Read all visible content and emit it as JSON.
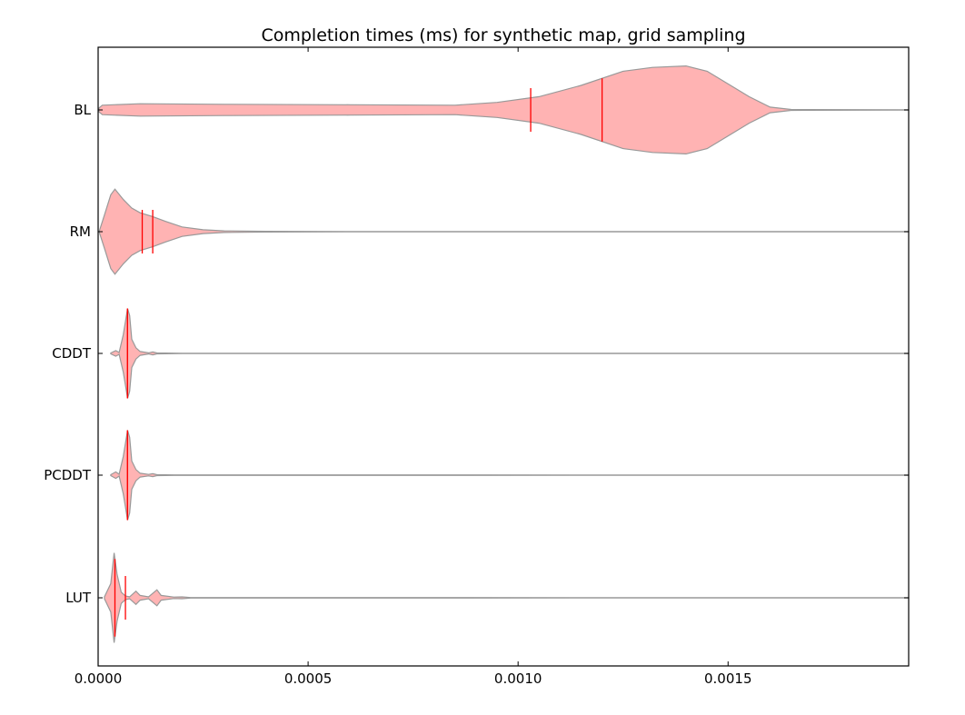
{
  "chart_data": {
    "type": "violin",
    "orientation": "horizontal",
    "title": "Completion times (ms) for synthetic map, grid sampling",
    "xlabel": "",
    "ylabel": "",
    "xlim": [
      0,
      0.00193
    ],
    "x_ticks": [
      0,
      0.0005,
      0.001,
      0.0015
    ],
    "x_tick_labels": [
      "0.0000",
      "0.0005",
      "0.0010",
      "0.0015"
    ],
    "grid": false,
    "colors": {
      "violin_fill": "#ffb3b3",
      "violin_edge": "#999999",
      "marker": "#ff0000",
      "axis": "#000000"
    },
    "categories": [
      "BL",
      "RM",
      "CDDT",
      "PCDDT",
      "LUT"
    ],
    "series": [
      {
        "label": "BL",
        "mean": 0.00103,
        "median": 0.0012,
        "range": [
          2e-06,
          0.00193
        ],
        "profile": [
          [
            2e-06,
            0.04
          ],
          [
            1e-05,
            0.1
          ],
          [
            0.0001,
            0.13
          ],
          [
            0.0003,
            0.12
          ],
          [
            0.0006,
            0.11
          ],
          [
            0.00085,
            0.1
          ],
          [
            0.00095,
            0.16
          ],
          [
            0.00105,
            0.28
          ],
          [
            0.00115,
            0.52
          ],
          [
            0.00125,
            0.82
          ],
          [
            0.00132,
            0.9
          ],
          [
            0.0014,
            0.93
          ],
          [
            0.00145,
            0.82
          ],
          [
            0.0015,
            0.55
          ],
          [
            0.00155,
            0.28
          ],
          [
            0.0016,
            0.06
          ],
          [
            0.00165,
            0.01
          ],
          [
            0.00193,
            0.003
          ]
        ]
      },
      {
        "label": "RM",
        "mean": 0.000105,
        "median": 0.00013,
        "range": [
          3e-06,
          0.00193
        ],
        "profile": [
          [
            3e-06,
            0.02
          ],
          [
            1.5e-05,
            0.35
          ],
          [
            3e-05,
            0.78
          ],
          [
            4e-05,
            0.9
          ],
          [
            6e-05,
            0.68
          ],
          [
            8e-05,
            0.5
          ],
          [
            0.0001,
            0.4
          ],
          [
            0.00013,
            0.32
          ],
          [
            0.00016,
            0.22
          ],
          [
            0.0002,
            0.1
          ],
          [
            0.00025,
            0.04
          ],
          [
            0.0003,
            0.018
          ],
          [
            0.0004,
            0.008
          ],
          [
            0.0006,
            0.004
          ],
          [
            0.00193,
            0.002
          ]
        ]
      },
      {
        "label": "CDDT",
        "mean": 7e-05,
        "median": 7e-05,
        "range": [
          3e-05,
          0.00193
        ],
        "profile": [
          [
            3e-05,
            0.01
          ],
          [
            4.2e-05,
            0.06
          ],
          [
            5e-05,
            0.02
          ],
          [
            6e-05,
            0.4
          ],
          [
            7e-05,
            0.95
          ],
          [
            7.5e-05,
            0.8
          ],
          [
            8e-05,
            0.3
          ],
          [
            9e-05,
            0.12
          ],
          [
            0.0001,
            0.04
          ],
          [
            0.00012,
            0.012
          ],
          [
            0.00013,
            0.03
          ],
          [
            0.00014,
            0.01
          ],
          [
            0.0002,
            0.004
          ],
          [
            0.00193,
            0.002
          ]
        ]
      },
      {
        "label": "PCDDT",
        "mean": 7e-05,
        "median": 7e-05,
        "range": [
          3e-05,
          0.00193
        ],
        "profile": [
          [
            3e-05,
            0.01
          ],
          [
            4.2e-05,
            0.07
          ],
          [
            5e-05,
            0.02
          ],
          [
            6e-05,
            0.4
          ],
          [
            7e-05,
            0.95
          ],
          [
            7.5e-05,
            0.8
          ],
          [
            8e-05,
            0.3
          ],
          [
            9e-05,
            0.12
          ],
          [
            0.0001,
            0.04
          ],
          [
            0.00012,
            0.015
          ],
          [
            0.00013,
            0.03
          ],
          [
            0.00014,
            0.01
          ],
          [
            0.00018,
            0.006
          ],
          [
            0.00193,
            0.002
          ]
        ]
      },
      {
        "label": "LUT",
        "mean": 4e-05,
        "median": 6.5e-05,
        "range": [
          1.5e-05,
          0.00193
        ],
        "profile": [
          [
            1.5e-05,
            0.02
          ],
          [
            3e-05,
            0.3
          ],
          [
            3.8e-05,
            0.95
          ],
          [
            4.5e-05,
            0.5
          ],
          [
            5.5e-05,
            0.12
          ],
          [
            6.5e-05,
            0.04
          ],
          [
            7.5e-05,
            0.02
          ],
          [
            9e-05,
            0.14
          ],
          [
            0.0001,
            0.05
          ],
          [
            0.00012,
            0.02
          ],
          [
            0.00014,
            0.17
          ],
          [
            0.00015,
            0.05
          ],
          [
            0.00018,
            0.015
          ],
          [
            0.0002,
            0.02
          ],
          [
            0.00022,
            0.005
          ],
          [
            0.00193,
            0.002
          ]
        ]
      }
    ]
  }
}
